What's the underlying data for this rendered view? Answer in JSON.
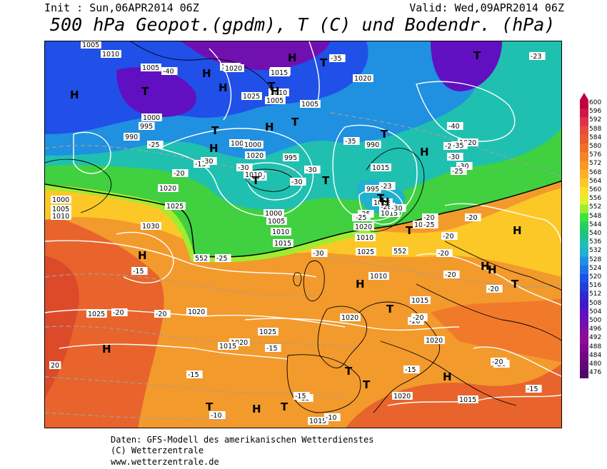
{
  "header": {
    "init": "Init : Sun,06APR2014 06Z",
    "valid": "Valid: Wed,09APR2014 06Z",
    "title": "500 hPa Geopot.(gpdm), T (C) und Bodendr. (hPa)"
  },
  "footer": {
    "line1": "Daten: GFS-Modell des amerikanischen Wetterdienstes",
    "line2": "(C) Wetterzentrale",
    "line3": "www.wetterzentrale.de"
  },
  "legend": {
    "values": [
      "600",
      "596",
      "592",
      "588",
      "584",
      "580",
      "576",
      "572",
      "568",
      "564",
      "560",
      "556",
      "552",
      "548",
      "544",
      "540",
      "536",
      "532",
      "528",
      "524",
      "520",
      "516",
      "512",
      "508",
      "504",
      "500",
      "496",
      "492",
      "488",
      "484",
      "480",
      "476"
    ],
    "colors": [
      "#c00040",
      "#d01848",
      "#e03050",
      "#e84c3c",
      "#ec5c2c",
      "#f0702a",
      "#f48428",
      "#f89828",
      "#fcb028",
      "#fcc828",
      "#f8e030",
      "#e0f030",
      "#a0ec30",
      "#40e040",
      "#20d060",
      "#20c088",
      "#20c0b0",
      "#20b0d0",
      "#2090e0",
      "#2070e8",
      "#2050e8",
      "#2040d8",
      "#3028d0",
      "#4018c8",
      "#6010c0",
      "#7010b0",
      "#8010a0",
      "#900c98",
      "#80088c",
      "#700880",
      "#600874",
      "#500868"
    ]
  },
  "pressure_labels": [
    "1005",
    "1010",
    "1005",
    "1000",
    "995",
    "990",
    "1015",
    "1010",
    "1020",
    "1025",
    "1030",
    "1000",
    "1005",
    "1010",
    "1020",
    "1025",
    "1015",
    "1010",
    "1005",
    "1000",
    "995",
    "990",
    "1000",
    "1005",
    "1010",
    "1015",
    "1020",
    "995",
    "1020",
    "1015",
    "1010",
    "1005",
    "1000",
    "1020",
    "990",
    "995",
    "1000",
    "1005",
    "1015",
    "1010",
    "1025",
    "1020",
    "1015",
    "1025",
    "1020",
    "1025",
    "1020",
    "1015",
    "1020",
    "1020",
    "1015",
    "1020",
    "1015",
    "1010",
    "20"
  ],
  "temp_labels": [
    "-40",
    "-35",
    "-30",
    "-25",
    "-20",
    "-15",
    "-30",
    "-30",
    "-35",
    "-25",
    "-30",
    "-25",
    "-40",
    "-35",
    "-30",
    "-25",
    "-20",
    "-23",
    "-28",
    "-30",
    "-25",
    "-20",
    "-30",
    "-20",
    "-20",
    "-15",
    "-20",
    "-20",
    "-25",
    "-30",
    "-20",
    "-20",
    "-15",
    "-15",
    "-20",
    "-20",
    "-20",
    "-25",
    "-15",
    "-10",
    "-10",
    "-15",
    "-15",
    "-20",
    "-15",
    "-23"
  ],
  "hl_markers": [
    "H",
    "T",
    "H",
    "T",
    "H",
    "H",
    "H",
    "T",
    "H",
    "T",
    "H",
    "T",
    "T",
    "T",
    "H",
    "T",
    "T",
    "H",
    "H",
    "H",
    "T",
    "H",
    "H",
    "H",
    "T",
    "T",
    "H",
    "T",
    "H",
    "T",
    "H",
    "T",
    "T",
    "T"
  ],
  "contour_552_label": "552",
  "contour_552_label2": "552"
}
